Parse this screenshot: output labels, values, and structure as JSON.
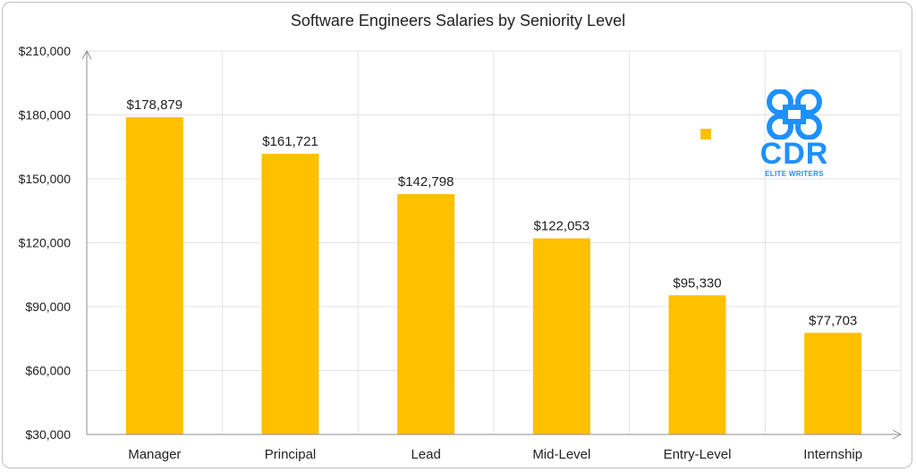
{
  "chart_data": {
    "type": "bar",
    "title": "Software Engineers Salaries by Seniority Level",
    "xlabel": "",
    "ylabel": "",
    "categories": [
      "Manager",
      "Principal",
      "Lead",
      "Mid-Level",
      "Entry-Level",
      "Internship"
    ],
    "values": [
      178879,
      161721,
      142798,
      122053,
      95330,
      77703
    ],
    "data_labels": [
      "$178,879",
      "$161,721",
      "$142,798",
      "$122,053",
      "$95,330",
      "$77,703"
    ],
    "y_ticks": [
      30000,
      60000,
      90000,
      120000,
      150000,
      180000,
      210000
    ],
    "y_tick_labels": [
      "$30,000",
      "$60,000",
      "$90,000",
      "$120,000",
      "$150,000",
      "$180,000",
      "$210,000"
    ],
    "ylim": [
      30000,
      210000
    ],
    "grid": true,
    "bar_color": "#FFC000"
  },
  "logo": {
    "text": "CDR",
    "subtext": "ELITE WRITERS",
    "color": "#1E90FF"
  }
}
